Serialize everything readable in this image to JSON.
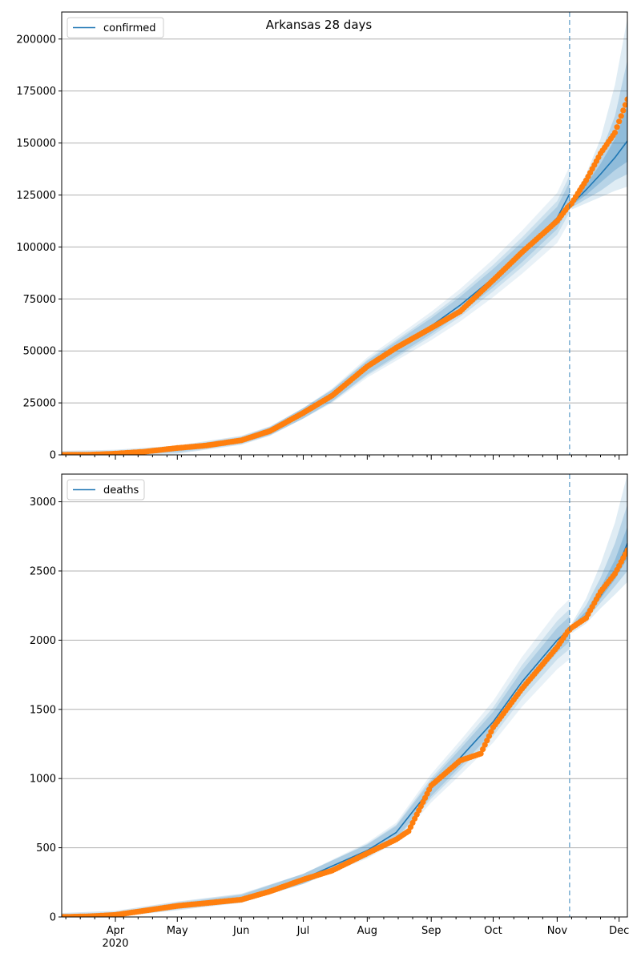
{
  "figure": {
    "title": "Arkansas 28 days",
    "colors": {
      "model": "#1f77b4",
      "observed": "#ff7f0e",
      "band": "#1f77b4",
      "grid": "#b0b0b0"
    }
  },
  "chart_data": [
    {
      "type": "line",
      "panel": "top",
      "title": "Arkansas 28 days",
      "legend": {
        "entries": [
          "confirmed"
        ],
        "placement": "top-left"
      },
      "x_axis": {
        "type": "date",
        "range": [
          "2020-03-06",
          "2020-12-05"
        ],
        "ticks": [],
        "visible_labels": false
      },
      "y_axis": {
        "range": [
          0,
          213000
        ],
        "ticks": [
          0,
          25000,
          50000,
          75000,
          100000,
          125000,
          150000,
          175000,
          200000
        ],
        "tick_labels": [
          "0",
          "25000",
          "50000",
          "75000",
          "100000",
          "125000",
          "150000",
          "175000",
          "200000"
        ],
        "grid": true
      },
      "forecast_start": "2020-11-07",
      "series": [
        {
          "name": "confirmed",
          "role": "model",
          "x": [
            "2020-03-06",
            "2020-04-01",
            "2020-05-01",
            "2020-06-01",
            "2020-06-15",
            "2020-07-01",
            "2020-07-15",
            "2020-08-01",
            "2020-08-15",
            "2020-09-01",
            "2020-09-15",
            "2020-10-01",
            "2020-10-15",
            "2020-11-01",
            "2020-11-07"
          ],
          "y": [
            0,
            500,
            2500,
            7000,
            11500,
            20000,
            28500,
            42000,
            51000,
            62000,
            72000,
            85000,
            97500,
            114000,
            125500
          ]
        },
        {
          "name": "forecast",
          "role": "model",
          "x": [
            "2020-11-08",
            "2020-11-15",
            "2020-11-22",
            "2020-11-29",
            "2020-12-05"
          ],
          "y": [
            120500,
            127500,
            135000,
            143000,
            151000
          ]
        },
        {
          "name": "forecast-band",
          "role": "band",
          "x": [
            "2020-11-08",
            "2020-11-15",
            "2020-11-22",
            "2020-11-29",
            "2020-12-05"
          ],
          "bands": [
            {
              "low": [
                118000,
                121000,
                124000,
                127000,
                129000
              ],
              "high": [
                123000,
                135000,
                152000,
                178000,
                210000
              ]
            },
            {
              "low": [
                119000,
                123000,
                127000,
                132000,
                135000
              ],
              "high": [
                122000,
                132000,
                145000,
                163000,
                190000
              ]
            },
            {
              "low": [
                120000,
                125000,
                131000,
                137000,
                141000
              ],
              "high": [
                121500,
                130000,
                140000,
                152000,
                168000
              ]
            }
          ]
        },
        {
          "name": "observed",
          "role": "observed",
          "x": [
            "2020-03-06",
            "2020-03-20",
            "2020-04-01",
            "2020-04-15",
            "2020-05-01",
            "2020-05-15",
            "2020-06-01",
            "2020-06-15",
            "2020-07-01",
            "2020-07-15",
            "2020-08-01",
            "2020-08-15",
            "2020-09-01",
            "2020-09-15",
            "2020-10-01",
            "2020-10-15",
            "2020-11-01",
            "2020-11-06",
            "2020-11-08",
            "2020-11-15",
            "2020-11-22",
            "2020-11-29",
            "2020-12-05"
          ],
          "y": [
            0,
            100,
            600,
            1500,
            3300,
            4500,
            7000,
            11500,
            20200,
            28500,
            42500,
            51500,
            61000,
            69000,
            84000,
            97500,
            112500,
            119000,
            121000,
            132000,
            145000,
            155000,
            171000
          ]
        }
      ]
    },
    {
      "type": "line",
      "panel": "bottom",
      "legend": {
        "entries": [
          "deaths"
        ],
        "placement": "top-left"
      },
      "x_axis": {
        "type": "date",
        "range": [
          "2020-03-06",
          "2020-12-05"
        ],
        "ticks": [
          "2020-04-01",
          "2020-05-01",
          "2020-06-01",
          "2020-07-01",
          "2020-08-01",
          "2020-09-01",
          "2020-10-01",
          "2020-11-01",
          "2020-12-01"
        ],
        "tick_labels": [
          "Apr",
          "May",
          "Jun",
          "Jul",
          "Aug",
          "Sep",
          "Oct",
          "Nov",
          "Dec"
        ],
        "year_label": "2020"
      },
      "y_axis": {
        "range": [
          0,
          3200
        ],
        "ticks": [
          0,
          500,
          1000,
          1500,
          2000,
          2500,
          3000
        ],
        "tick_labels": [
          "0",
          "500",
          "1000",
          "1500",
          "2000",
          "2500",
          "3000"
        ],
        "grid": true
      },
      "forecast_start": "2020-11-07",
      "series": [
        {
          "name": "deaths",
          "role": "model",
          "x": [
            "2020-03-06",
            "2020-04-01",
            "2020-05-01",
            "2020-06-01",
            "2020-07-01",
            "2020-08-01",
            "2020-08-15",
            "2020-09-01",
            "2020-09-15",
            "2020-10-01",
            "2020-10-15",
            "2020-11-01",
            "2020-11-07"
          ],
          "y": [
            0,
            15,
            80,
            135,
            275,
            480,
            610,
            930,
            1150,
            1410,
            1700,
            2000,
            2080
          ]
        },
        {
          "name": "forecast",
          "role": "model",
          "x": [
            "2020-11-08",
            "2020-11-15",
            "2020-11-22",
            "2020-11-29",
            "2020-12-05"
          ],
          "y": [
            2090,
            2180,
            2320,
            2480,
            2700
          ]
        },
        {
          "name": "forecast-band",
          "role": "band",
          "x": [
            "2020-11-08",
            "2020-11-15",
            "2020-11-22",
            "2020-11-29",
            "2020-12-05"
          ],
          "bands": [
            {
              "low": [
                2050,
                2120,
                2230,
                2330,
                2420
              ],
              "high": [
                2120,
                2300,
                2550,
                2850,
                3200
              ]
            },
            {
              "low": [
                2070,
                2150,
                2270,
                2390,
                2500
              ],
              "high": [
                2110,
                2250,
                2450,
                2700,
                2980
              ]
            },
            {
              "low": [
                2080,
                2170,
                2300,
                2440,
                2590
              ],
              "high": [
                2100,
                2210,
                2380,
                2580,
                2820
              ]
            }
          ]
        },
        {
          "name": "observed",
          "role": "observed",
          "x": [
            "2020-03-06",
            "2020-03-20",
            "2020-04-01",
            "2020-04-15",
            "2020-05-01",
            "2020-05-15",
            "2020-06-01",
            "2020-06-15",
            "2020-07-01",
            "2020-07-15",
            "2020-08-01",
            "2020-08-15",
            "2020-08-21",
            "2020-09-01",
            "2020-09-15",
            "2020-09-25",
            "2020-10-01",
            "2020-10-15",
            "2020-11-01",
            "2020-11-06",
            "2020-11-08",
            "2020-11-15",
            "2020-11-22",
            "2020-11-29",
            "2020-12-05"
          ],
          "y": [
            0,
            5,
            15,
            45,
            80,
            100,
            125,
            185,
            270,
            335,
            460,
            560,
            620,
            950,
            1130,
            1180,
            1370,
            1650,
            1950,
            2060,
            2090,
            2160,
            2350,
            2480,
            2650
          ]
        }
      ]
    }
  ]
}
